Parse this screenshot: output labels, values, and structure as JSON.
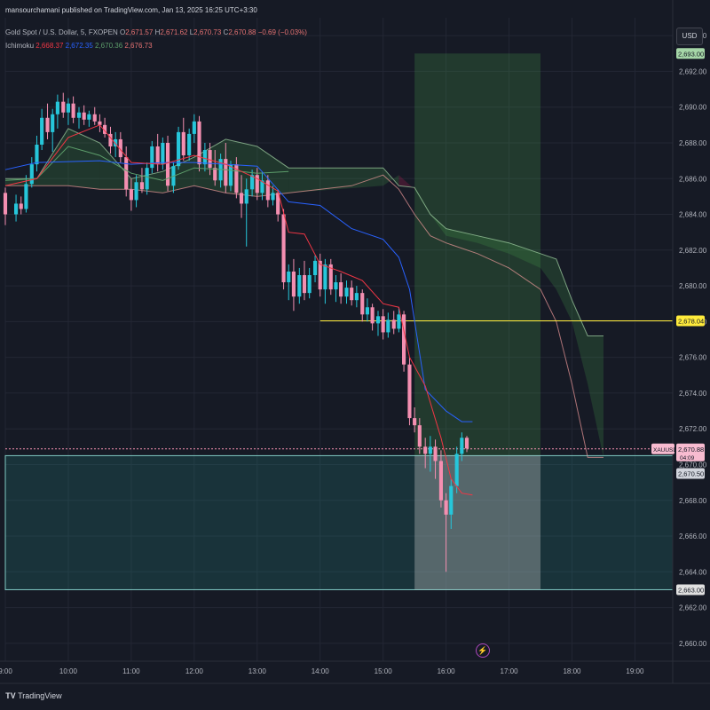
{
  "header": {
    "published": "mansourchamani published on TradingView.com, Jan 13, 2025 16:25 UTC+3:30",
    "symbol_line": "Gold Spot / U.S. Dollar, 5, FXOPEN",
    "open_label": "O",
    "open": "2,671.57",
    "high_label": "H",
    "high": "2,671.62",
    "low_label": "L",
    "low": "2,670.73",
    "close_label": "C",
    "close": "2,670.88",
    "change": "−0.69 (−0.03%)",
    "ichimoku_label": "Ichimoku",
    "ichimoku_values": [
      "2,668.37",
      "2,672.35",
      "2,670.36",
      "2,676.73"
    ]
  },
  "currency": "USD",
  "footer": {
    "brand": "TradingView"
  },
  "colors": {
    "up": "#26c6da",
    "down": "#f48fb1",
    "tenkan": "#f23645",
    "kijun": "#2962ff",
    "lagging": "#5d9e6b",
    "line_level": "#ffeb3b",
    "target": "#a5d6a7",
    "stop": "#80cbc4"
  },
  "chart_data": {
    "type": "candlestick",
    "title": "Gold Spot / U.S. Dollar, 5, FXOPEN",
    "symbol": "XAUUSD",
    "ylim": [
      2659,
      2695
    ],
    "y_ticks": [
      "2,660.00",
      "2,662.00",
      "2,664.00",
      "2,666.00",
      "2,668.00",
      "2,670.00",
      "2,672.00",
      "2,674.00",
      "2,676.00",
      "2,678.00",
      "2,680.00",
      "2,682.00",
      "2,684.00",
      "2,686.00",
      "2,688.00",
      "2,690.00",
      "2,692.00",
      "2,694.00"
    ],
    "y_tick_values": [
      2660,
      2662,
      2664,
      2666,
      2668,
      2670,
      2672,
      2674,
      2676,
      2678,
      2680,
      2682,
      2684,
      2686,
      2688,
      2690,
      2692,
      2694
    ],
    "x_ticks": [
      "9:00",
      "10:00",
      "11:00",
      "12:00",
      "13:00",
      "14:00",
      "15:00",
      "16:00",
      "17:00",
      "18:00",
      "19:00"
    ],
    "x_tick_hours": [
      9,
      10,
      11,
      12,
      13,
      14,
      15,
      16,
      17,
      18,
      19
    ],
    "x_range_hours": [
      9.0,
      19.6
    ],
    "candles": [
      [
        9.0,
        2685.2,
        2685.5,
        2683.4,
        2684.0
      ],
      [
        9.17,
        2684.0,
        2685.1,
        2683.6,
        2684.6
      ],
      [
        9.25,
        2684.6,
        2685.0,
        2684.0,
        2684.3
      ],
      [
        9.33,
        2684.3,
        2686.2,
        2684.1,
        2685.7
      ],
      [
        9.42,
        2685.7,
        2687.2,
        2685.5,
        2686.8
      ],
      [
        9.5,
        2686.8,
        2688.4,
        2686.4,
        2687.9
      ],
      [
        9.58,
        2687.9,
        2689.9,
        2687.6,
        2689.4
      ],
      [
        9.67,
        2689.4,
        2690.2,
        2688.2,
        2688.6
      ],
      [
        9.75,
        2688.6,
        2689.9,
        2687.5,
        2689.6
      ],
      [
        9.83,
        2689.6,
        2690.7,
        2688.8,
        2690.3
      ],
      [
        9.92,
        2690.3,
        2690.8,
        2689.4,
        2689.7
      ],
      [
        10.0,
        2689.7,
        2690.5,
        2689.0,
        2690.2
      ],
      [
        10.08,
        2690.2,
        2690.6,
        2689.1,
        2689.4
      ],
      [
        10.17,
        2689.4,
        2690.0,
        2688.8,
        2689.7
      ],
      [
        10.25,
        2689.7,
        2690.1,
        2689.0,
        2689.3
      ],
      [
        10.33,
        2689.3,
        2689.8,
        2688.9,
        2689.6
      ],
      [
        10.42,
        2689.6,
        2690.0,
        2689.0,
        2689.2
      ],
      [
        10.5,
        2689.2,
        2689.6,
        2688.6,
        2689.0
      ],
      [
        10.58,
        2689.0,
        2689.4,
        2688.3,
        2688.5
      ],
      [
        10.67,
        2688.5,
        2688.9,
        2687.4,
        2687.8
      ],
      [
        10.75,
        2687.8,
        2688.6,
        2687.2,
        2688.2
      ],
      [
        10.83,
        2688.2,
        2688.6,
        2686.9,
        2687.2
      ],
      [
        10.92,
        2687.2,
        2687.8,
        2685.0,
        2685.4
      ],
      [
        11.0,
        2685.4,
        2686.0,
        2684.2,
        2684.8
      ],
      [
        11.08,
        2684.8,
        2686.2,
        2684.4,
        2685.8
      ],
      [
        11.17,
        2685.8,
        2686.6,
        2685.2,
        2685.4
      ],
      [
        11.25,
        2685.4,
        2686.9,
        2685.1,
        2686.6
      ],
      [
        11.33,
        2686.6,
        2688.1,
        2686.3,
        2687.8
      ],
      [
        11.42,
        2687.8,
        2688.5,
        2686.4,
        2686.8
      ],
      [
        11.5,
        2686.8,
        2688.3,
        2686.5,
        2688.0
      ],
      [
        11.58,
        2688.0,
        2688.4,
        2685.3,
        2685.6
      ],
      [
        11.67,
        2685.6,
        2686.9,
        2685.2,
        2686.7
      ],
      [
        11.75,
        2686.7,
        2688.9,
        2686.5,
        2688.6
      ],
      [
        11.83,
        2688.6,
        2689.4,
        2687.0,
        2687.3
      ],
      [
        11.92,
        2687.3,
        2688.8,
        2687.0,
        2688.5
      ],
      [
        12.0,
        2688.5,
        2689.6,
        2688.0,
        2689.2
      ],
      [
        12.08,
        2689.2,
        2689.5,
        2686.4,
        2686.8
      ],
      [
        12.17,
        2686.8,
        2688.0,
        2686.4,
        2687.6
      ],
      [
        12.25,
        2687.6,
        2688.0,
        2686.2,
        2686.6
      ],
      [
        12.33,
        2686.6,
        2687.6,
        2685.6,
        2685.9
      ],
      [
        12.42,
        2685.9,
        2687.4,
        2685.5,
        2687.1
      ],
      [
        12.5,
        2687.1,
        2688.0,
        2685.2,
        2685.6
      ],
      [
        12.58,
        2685.6,
        2687.0,
        2685.3,
        2686.8
      ],
      [
        12.67,
        2686.8,
        2687.2,
        2684.9,
        2685.2
      ],
      [
        12.75,
        2685.2,
        2686.2,
        2683.8,
        2684.6
      ],
      [
        12.83,
        2684.6,
        2686.0,
        2682.2,
        2685.4
      ],
      [
        12.92,
        2685.4,
        2686.5,
        2685.0,
        2686.2
      ],
      [
        13.0,
        2686.2,
        2686.6,
        2684.8,
        2685.2
      ],
      [
        13.08,
        2685.2,
        2686.4,
        2684.8,
        2685.9
      ],
      [
        13.17,
        2685.9,
        2686.2,
        2684.4,
        2684.8
      ],
      [
        13.25,
        2684.8,
        2685.6,
        2684.5,
        2685.2
      ],
      [
        13.33,
        2685.2,
        2685.4,
        2683.6,
        2684.0
      ],
      [
        13.42,
        2684.0,
        2684.3,
        2679.8,
        2680.2
      ],
      [
        13.5,
        2680.2,
        2681.2,
        2679.2,
        2680.8
      ],
      [
        13.58,
        2680.8,
        2681.5,
        2678.6,
        2679.4
      ],
      [
        13.67,
        2679.4,
        2681.0,
        2679.0,
        2680.6
      ],
      [
        13.75,
        2680.6,
        2681.4,
        2679.2,
        2679.6
      ],
      [
        13.83,
        2679.6,
        2681.0,
        2679.3,
        2680.6
      ],
      [
        13.92,
        2680.6,
        2681.7,
        2680.2,
        2681.4
      ],
      [
        14.0,
        2681.4,
        2681.8,
        2679.4,
        2679.8
      ],
      [
        14.08,
        2679.8,
        2681.5,
        2679.0,
        2681.2
      ],
      [
        14.17,
        2681.2,
        2681.5,
        2679.5,
        2679.8
      ],
      [
        14.25,
        2679.8,
        2680.6,
        2679.1,
        2680.2
      ],
      [
        14.33,
        2680.2,
        2680.7,
        2679.0,
        2679.4
      ],
      [
        14.42,
        2679.4,
        2680.3,
        2679.0,
        2679.9
      ],
      [
        14.5,
        2679.9,
        2680.3,
        2678.9,
        2679.2
      ],
      [
        14.58,
        2679.2,
        2680.0,
        2678.8,
        2679.6
      ],
      [
        14.67,
        2679.6,
        2679.8,
        2678.0,
        2678.4
      ],
      [
        14.75,
        2678.4,
        2679.3,
        2678.0,
        2678.8
      ],
      [
        14.83,
        2678.8,
        2679.0,
        2677.5,
        2677.9
      ],
      [
        14.92,
        2677.9,
        2678.6,
        2677.2,
        2678.3
      ],
      [
        15.0,
        2678.3,
        2678.7,
        2677.0,
        2677.4
      ],
      [
        15.08,
        2677.4,
        2678.5,
        2677.1,
        2678.1
      ],
      [
        15.17,
        2678.1,
        2678.6,
        2677.3,
        2677.6
      ],
      [
        15.25,
        2677.6,
        2678.8,
        2677.4,
        2678.4
      ],
      [
        15.33,
        2678.4,
        2678.6,
        2675.2,
        2675.6
      ],
      [
        15.42,
        2675.6,
        2676.0,
        2672.2,
        2672.6
      ],
      [
        15.5,
        2672.6,
        2673.2,
        2671.8,
        2672.2
      ],
      [
        15.58,
        2672.2,
        2672.6,
        2670.6,
        2671.0
      ],
      [
        15.67,
        2671.0,
        2671.5,
        2669.8,
        2670.6
      ],
      [
        15.75,
        2670.6,
        2671.6,
        2669.6,
        2671.0
      ],
      [
        15.83,
        2671.0,
        2671.4,
        2669.2,
        2670.2
      ],
      [
        15.92,
        2670.2,
        2670.8,
        2667.6,
        2668.0
      ],
      [
        16.0,
        2668.0,
        2668.4,
        2664.0,
        2667.2
      ],
      [
        16.08,
        2667.2,
        2669.2,
        2666.4,
        2668.8
      ],
      [
        16.17,
        2668.8,
        2671.0,
        2668.4,
        2670.6
      ],
      [
        16.25,
        2670.6,
        2671.8,
        2670.2,
        2671.5
      ],
      [
        16.33,
        2671.5,
        2671.6,
        2670.7,
        2670.9
      ]
    ],
    "tenkan": [
      [
        9.0,
        2685.6
      ],
      [
        9.5,
        2686.0
      ],
      [
        10.0,
        2688.3
      ],
      [
        10.5,
        2689.0
      ],
      [
        11.0,
        2686.9
      ],
      [
        11.5,
        2686.8
      ],
      [
        12.0,
        2687.3
      ],
      [
        12.5,
        2686.8
      ],
      [
        13.0,
        2686.0
      ],
      [
        13.33,
        2685.3
      ],
      [
        13.5,
        2683.0
      ],
      [
        13.75,
        2682.9
      ],
      [
        14.0,
        2681.2
      ],
      [
        14.33,
        2680.8
      ],
      [
        14.67,
        2680.3
      ],
      [
        15.0,
        2679.0
      ],
      [
        15.25,
        2678.8
      ],
      [
        15.42,
        2676.0
      ],
      [
        15.67,
        2674.4
      ],
      [
        15.92,
        2671.5
      ],
      [
        16.08,
        2669.2
      ],
      [
        16.25,
        2668.4
      ],
      [
        16.42,
        2668.3
      ]
    ],
    "kijun": [
      [
        9.0,
        2686.5
      ],
      [
        9.5,
        2686.9
      ],
      [
        10.5,
        2687.0
      ],
      [
        11.0,
        2686.8
      ],
      [
        11.5,
        2686.9
      ],
      [
        12.0,
        2686.9
      ],
      [
        12.5,
        2686.8
      ],
      [
        13.0,
        2686.7
      ],
      [
        13.5,
        2684.7
      ],
      [
        14.0,
        2684.5
      ],
      [
        14.5,
        2683.2
      ],
      [
        15.0,
        2682.6
      ],
      [
        15.25,
        2681.6
      ],
      [
        15.42,
        2679.8
      ],
      [
        15.67,
        2674.2
      ],
      [
        16.0,
        2673.0
      ],
      [
        16.25,
        2672.4
      ],
      [
        16.42,
        2672.4
      ]
    ],
    "lagging": [
      [
        9.0,
        2685.9
      ],
      [
        9.5,
        2686.0
      ],
      [
        10.0,
        2687.8
      ],
      [
        10.5,
        2687.3
      ],
      [
        11.0,
        2686.3
      ],
      [
        11.5,
        2685.9
      ],
      [
        12.0,
        2686.6
      ],
      [
        12.5,
        2686.5
      ],
      [
        13.0,
        2686.3
      ],
      [
        13.5,
        2686.4
      ]
    ],
    "cloud_a": [
      [
        9.0,
        2686.0
      ],
      [
        9.5,
        2686.0
      ],
      [
        10.0,
        2688.8
      ],
      [
        10.5,
        2688.0
      ],
      [
        11.0,
        2686.0
      ],
      [
        11.5,
        2686.4
      ],
      [
        12.0,
        2687.2
      ],
      [
        12.5,
        2688.2
      ],
      [
        13.0,
        2687.8
      ],
      [
        13.5,
        2686.6
      ],
      [
        15.0,
        2686.6
      ],
      [
        15.25,
        2685.6
      ],
      [
        15.5,
        2685.5
      ],
      [
        15.75,
        2684.0
      ],
      [
        16.0,
        2683.2
      ],
      [
        16.5,
        2682.8
      ],
      [
        17.0,
        2682.4
      ],
      [
        17.5,
        2681.8
      ],
      [
        17.75,
        2681.5
      ],
      [
        18.0,
        2679.2
      ],
      [
        18.25,
        2677.2
      ],
      [
        18.5,
        2677.2
      ]
    ],
    "cloud_b": [
      [
        9.0,
        2685.6
      ],
      [
        9.5,
        2685.6
      ],
      [
        10.0,
        2685.6
      ],
      [
        10.5,
        2685.4
      ],
      [
        11.0,
        2685.4
      ],
      [
        11.5,
        2685.2
      ],
      [
        12.0,
        2685.6
      ],
      [
        12.5,
        2685.2
      ],
      [
        13.0,
        2685.0
      ],
      [
        13.5,
        2685.2
      ],
      [
        14.5,
        2685.6
      ],
      [
        15.0,
        2686.2
      ],
      [
        15.25,
        2685.4
      ],
      [
        15.5,
        2684.0
      ],
      [
        15.75,
        2682.8
      ],
      [
        16.0,
        2682.4
      ],
      [
        16.5,
        2681.8
      ],
      [
        17.0,
        2681.0
      ],
      [
        17.5,
        2679.8
      ],
      [
        17.75,
        2678.0
      ],
      [
        18.0,
        2674.5
      ],
      [
        18.25,
        2670.4
      ],
      [
        18.5,
        2670.4
      ]
    ],
    "horizontal_line": 2678.04,
    "position": {
      "entry": 2670.5,
      "target": 2693.0,
      "stop": 2663.0,
      "start_hour": 15.5,
      "end_hour": 17.5
    },
    "zone": {
      "top": 2670.5,
      "bottom": 2663.0
    },
    "current_price": 2670.88,
    "price_labels": {
      "target": "2,693.00",
      "line": "2,678.04",
      "symbol": "XAUUSD",
      "current": "2,670.88",
      "countdown": "04:09",
      "entry": "2,670.50",
      "stop": "2,663.00"
    }
  }
}
